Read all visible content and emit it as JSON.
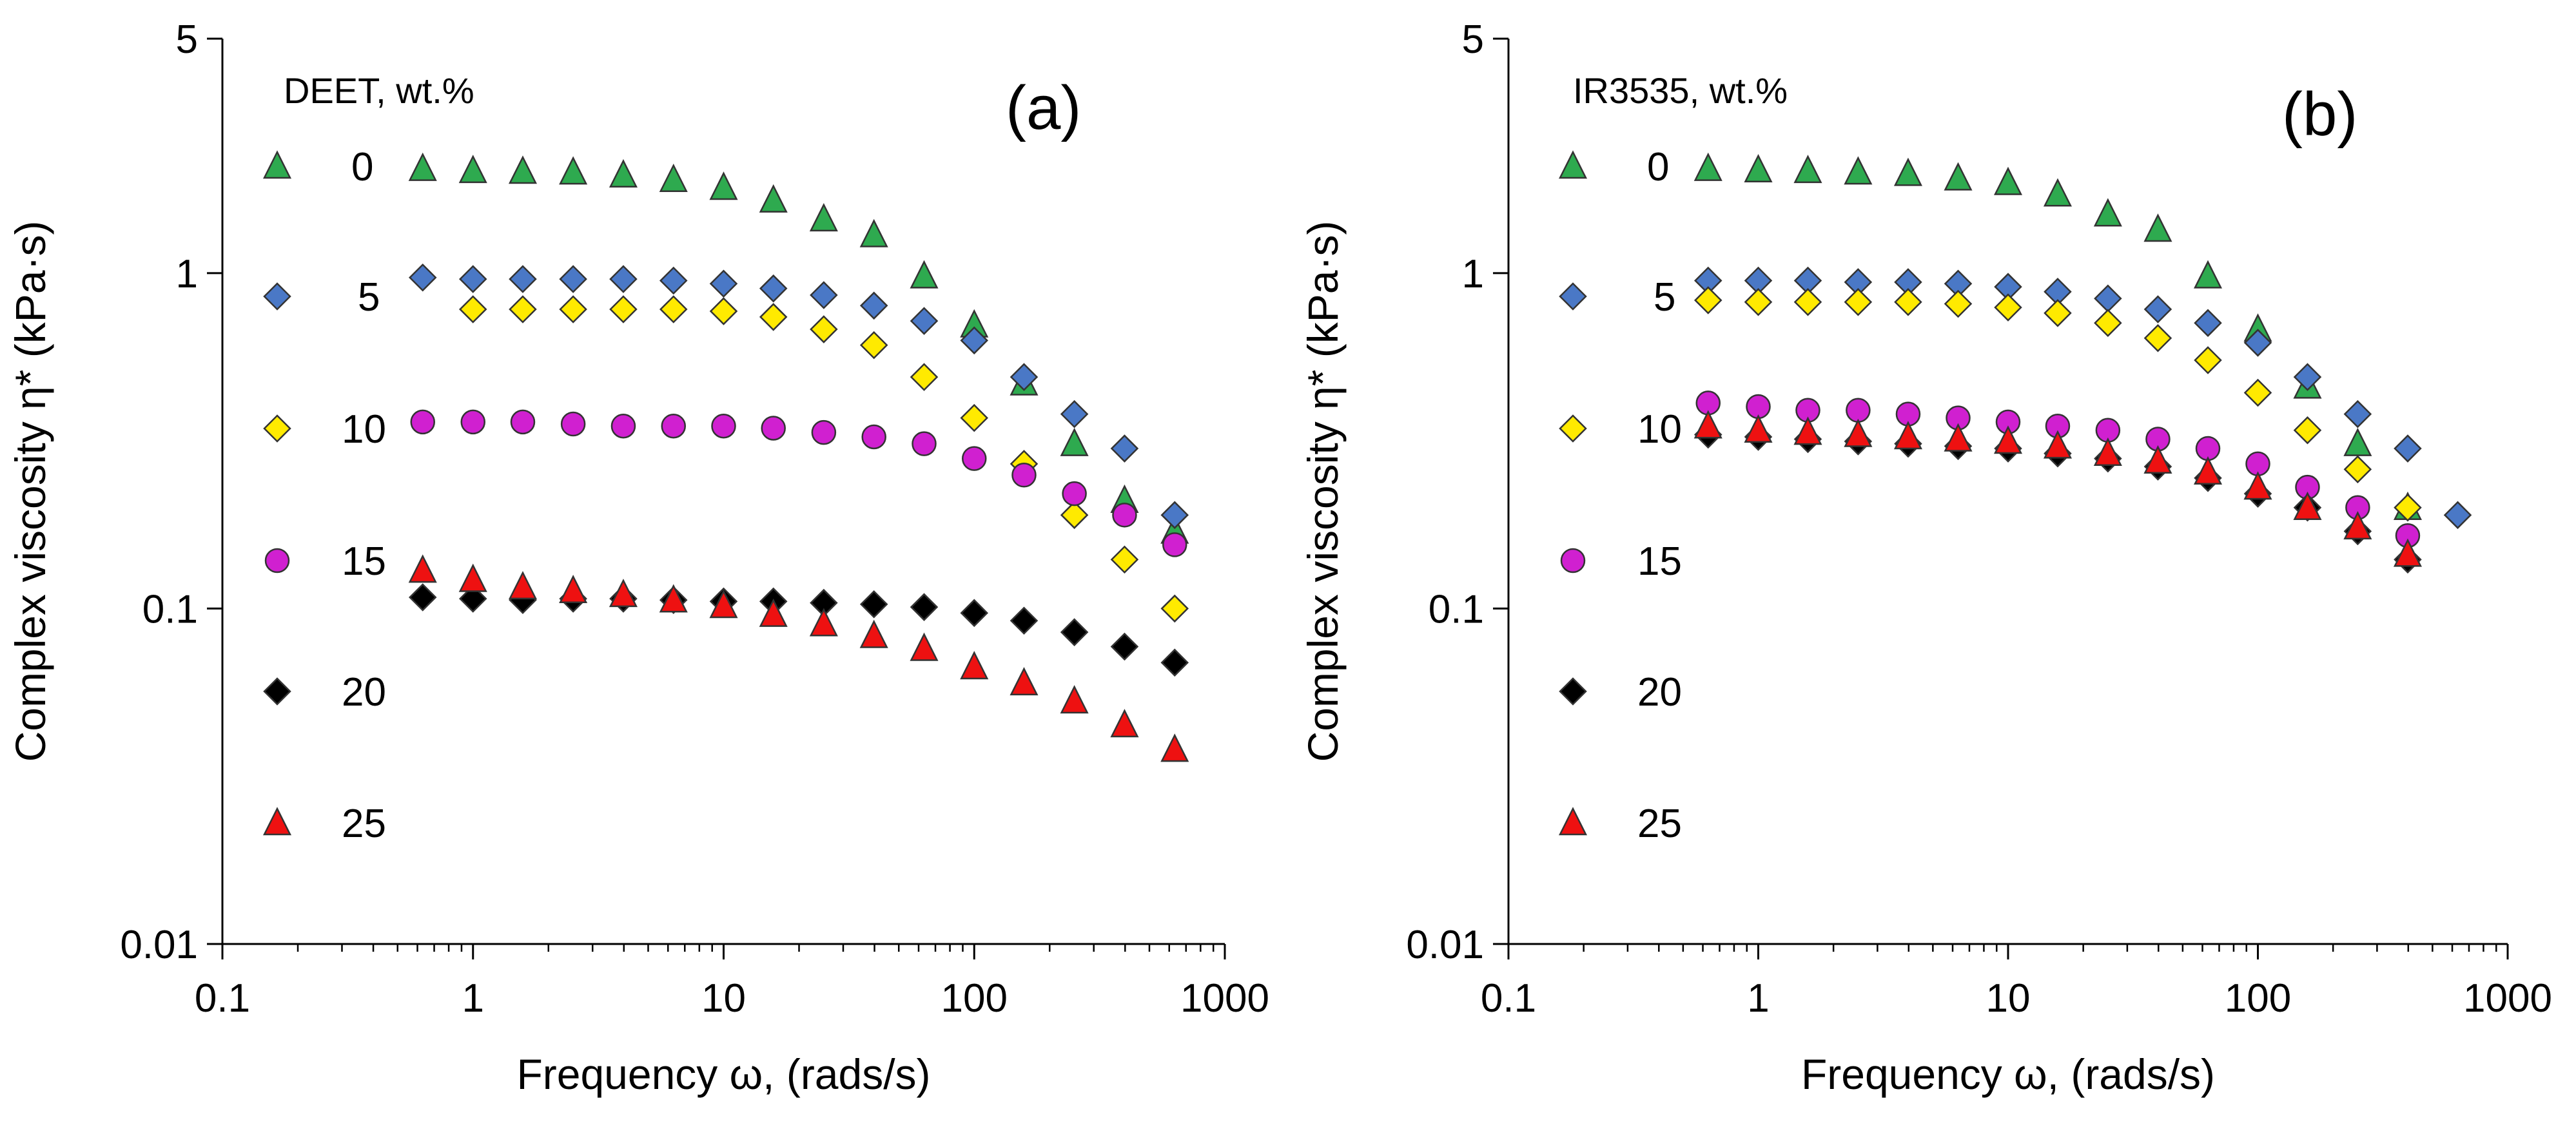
{
  "chart_data": [
    {
      "type": "scatter",
      "panel_label": "(a)",
      "legend_title": "DEET, wt.%",
      "xlabel": "Frequency ω, (rads/s)",
      "ylabel": "Complex viscosity η* (kPa·s)",
      "xscale": "log",
      "yscale": "log",
      "xlim": [
        0.1,
        1000
      ],
      "ylim": [
        0.01,
        5
      ],
      "xticks": [
        "0.1",
        "1",
        "10",
        "100",
        "1000"
      ],
      "yticks": [
        {
          "value": 0.01,
          "label": "0.01"
        },
        {
          "value": 0.1,
          "label": "0.1"
        },
        {
          "value": 1,
          "label": "1"
        },
        {
          "value": 5,
          "label": "5"
        }
      ],
      "x": [
        0.63,
        1.0,
        1.58,
        2.51,
        3.98,
        6.31,
        10,
        15.8,
        25.1,
        39.8,
        63.1,
        100,
        158,
        251,
        398,
        631
      ],
      "series": [
        {
          "name": "0",
          "marker": "triangle",
          "color": "#2eaa4f",
          "values": [
            2.05,
            2.02,
            2.01,
            2.0,
            1.96,
            1.9,
            1.8,
            1.65,
            1.45,
            1.3,
            0.98,
            0.7,
            0.47,
            0.31,
            0.21,
            0.17
          ]
        },
        {
          "name": "5",
          "marker": "diamond",
          "color": "#4a78c6",
          "values": [
            0.97,
            0.96,
            0.96,
            0.96,
            0.96,
            0.95,
            0.93,
            0.9,
            0.86,
            0.8,
            0.72,
            0.63,
            0.49,
            0.38,
            0.3,
            0.19
          ]
        },
        {
          "name": "10",
          "marker": "diamond",
          "color": "#ffea00",
          "values": [
            null,
            0.78,
            0.78,
            0.78,
            0.78,
            0.78,
            0.77,
            0.74,
            0.68,
            0.61,
            0.49,
            0.37,
            0.27,
            0.19,
            0.14,
            0.1
          ]
        },
        {
          "name": "15",
          "marker": "circle",
          "color": "#d020d0",
          "values": [
            0.36,
            0.36,
            0.36,
            0.355,
            0.35,
            0.35,
            0.35,
            0.345,
            0.335,
            0.325,
            0.31,
            0.28,
            0.25,
            0.22,
            0.19,
            0.155
          ]
        },
        {
          "name": "20",
          "marker": "diamond",
          "color": "#000000",
          "values": [
            0.108,
            0.107,
            0.106,
            0.107,
            0.107,
            0.106,
            0.105,
            0.105,
            0.104,
            0.103,
            0.101,
            0.097,
            0.092,
            0.085,
            0.077,
            0.069
          ]
        },
        {
          "name": "25",
          "marker": "triangle",
          "color": "#ee1111",
          "values": [
            0.13,
            0.122,
            0.116,
            0.113,
            0.11,
            0.106,
            0.102,
            0.096,
            0.09,
            0.083,
            0.076,
            0.067,
            0.06,
            0.053,
            0.045,
            0.038
          ]
        }
      ]
    },
    {
      "type": "scatter",
      "panel_label": "(b)",
      "legend_title": "IR3535, wt.%",
      "xlabel": "Frequency ω, (rads/s)",
      "ylabel": "Complex viscosity η* (kPa·s)",
      "xscale": "log",
      "yscale": "log",
      "xlim": [
        0.1,
        1000
      ],
      "ylim": [
        0.01,
        5
      ],
      "xticks": [
        "0.1",
        "1",
        "10",
        "100",
        "1000"
      ],
      "yticks": [
        {
          "value": 0.01,
          "label": "0.01"
        },
        {
          "value": 0.1,
          "label": "0.1"
        },
        {
          "value": 1,
          "label": "1"
        },
        {
          "value": 5,
          "label": "5"
        }
      ],
      "x": [
        0.63,
        1.0,
        1.58,
        2.51,
        3.98,
        6.31,
        10,
        15.8,
        25.1,
        39.8,
        63.1,
        100,
        158,
        251,
        398,
        631
      ],
      "series": [
        {
          "name": "0",
          "marker": "triangle",
          "color": "#2eaa4f",
          "values": [
            2.05,
            2.03,
            2.02,
            2.0,
            1.98,
            1.92,
            1.86,
            1.72,
            1.5,
            1.35,
            0.98,
            0.68,
            0.46,
            0.31,
            0.2,
            null
          ]
        },
        {
          "name": "5",
          "marker": "diamond",
          "color": "#4a78c6",
          "values": [
            0.95,
            0.95,
            0.95,
            0.94,
            0.94,
            0.93,
            0.91,
            0.88,
            0.84,
            0.78,
            0.71,
            0.62,
            0.49,
            0.38,
            0.3,
            0.19
          ]
        },
        {
          "name": "10",
          "marker": "diamond",
          "color": "#ffea00",
          "values": [
            0.83,
            0.82,
            0.82,
            0.82,
            0.82,
            0.81,
            0.79,
            0.76,
            0.71,
            0.64,
            0.55,
            0.44,
            0.34,
            0.26,
            0.2,
            null
          ]
        },
        {
          "name": "15",
          "marker": "circle",
          "color": "#d020d0",
          "values": [
            0.41,
            0.4,
            0.39,
            0.39,
            0.38,
            0.37,
            0.36,
            0.35,
            0.34,
            0.32,
            0.3,
            0.27,
            0.23,
            0.2,
            0.165,
            null
          ]
        },
        {
          "name": "20",
          "marker": "diamond",
          "color": "#000000",
          "values": [
            0.33,
            0.325,
            0.32,
            0.315,
            0.31,
            0.305,
            0.3,
            0.29,
            0.28,
            0.265,
            0.245,
            0.22,
            0.2,
            0.17,
            0.14,
            null
          ]
        },
        {
          "name": "25",
          "marker": "triangle",
          "color": "#ee1111",
          "values": [
            0.35,
            0.34,
            0.335,
            0.33,
            0.325,
            0.32,
            0.315,
            0.305,
            0.29,
            0.275,
            0.255,
            0.23,
            0.2,
            0.175,
            0.145,
            null
          ]
        }
      ]
    }
  ]
}
